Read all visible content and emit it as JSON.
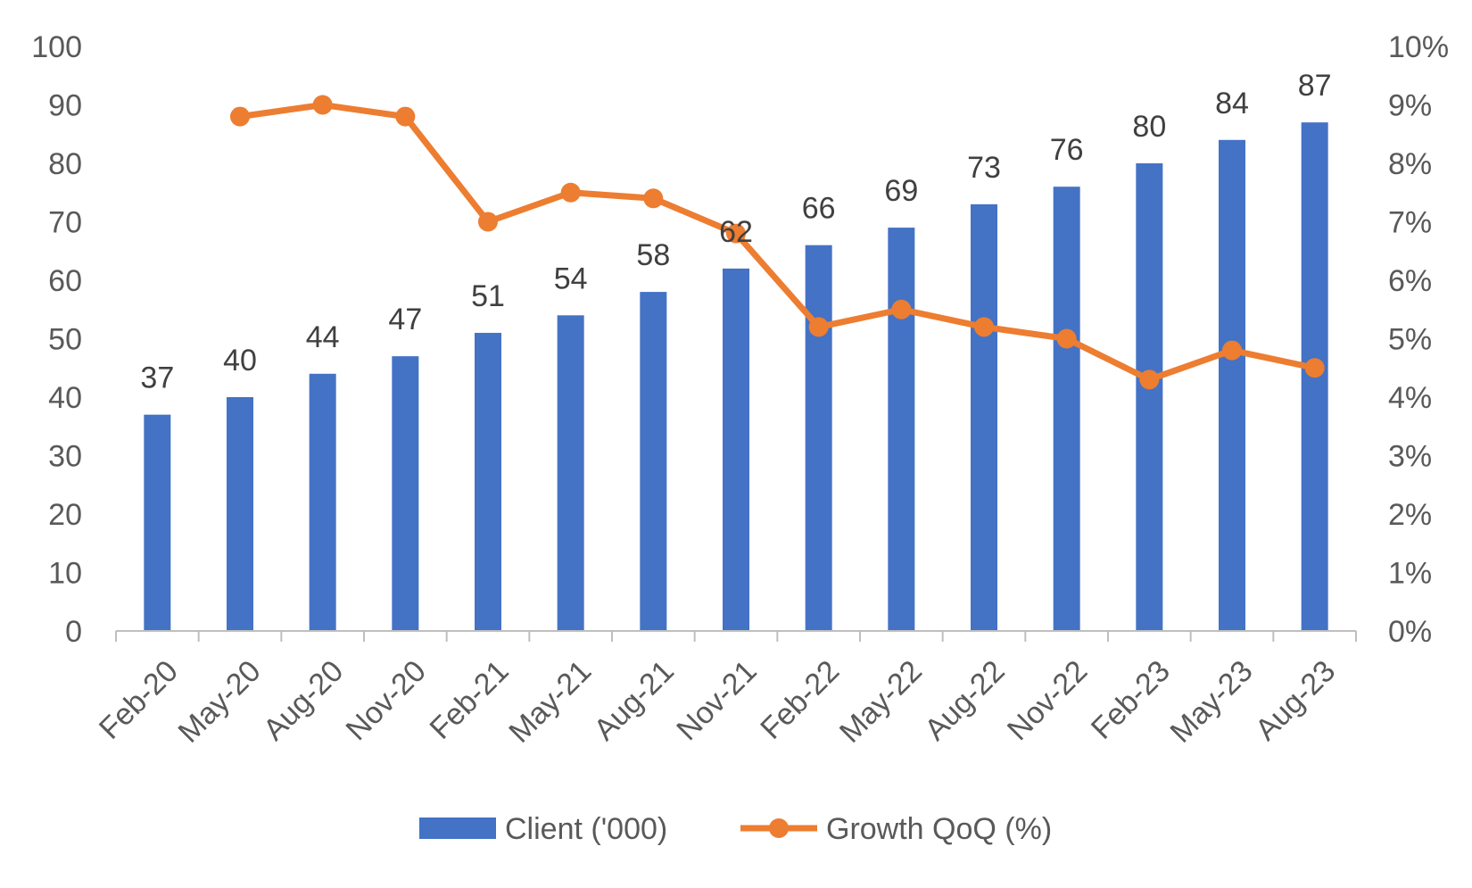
{
  "chart_data": {
    "type": "bar",
    "categories": [
      "Feb-20",
      "May-20",
      "Aug-20",
      "Nov-20",
      "Feb-21",
      "May-21",
      "Aug-21",
      "Nov-21",
      "Feb-22",
      "May-22",
      "Aug-22",
      "Nov-22",
      "Feb-23",
      "May-23",
      "Aug-23"
    ],
    "series": [
      {
        "name": "Client ('000)",
        "type": "bar",
        "axis": "left",
        "color": "#4472C4",
        "values": [
          37,
          40,
          44,
          47,
          51,
          54,
          58,
          62,
          66,
          69,
          73,
          76,
          80,
          84,
          87
        ],
        "data_labels": [
          "37",
          "40",
          "44",
          "47",
          "51",
          "54",
          "58",
          "62",
          "66",
          "69",
          "73",
          "76",
          "80",
          "84",
          "87"
        ]
      },
      {
        "name": "Growth QoQ (%)",
        "type": "line",
        "axis": "right",
        "color": "#ED7D31",
        "values": [
          null,
          8.8,
          9.0,
          8.8,
          7.0,
          7.5,
          7.4,
          6.8,
          5.2,
          5.5,
          5.2,
          5.0,
          4.3,
          4.8,
          4.5
        ]
      }
    ],
    "y_left": {
      "min": 0,
      "max": 100,
      "ticks": [
        "0",
        "10",
        "20",
        "30",
        "40",
        "50",
        "60",
        "70",
        "80",
        "90",
        "100"
      ]
    },
    "y_right": {
      "min": 0,
      "max": 10,
      "ticks": [
        "0%",
        "1%",
        "2%",
        "3%",
        "4%",
        "5%",
        "6%",
        "7%",
        "8%",
        "9%",
        "10%"
      ]
    },
    "legend_position": "bottom",
    "grid": false
  }
}
